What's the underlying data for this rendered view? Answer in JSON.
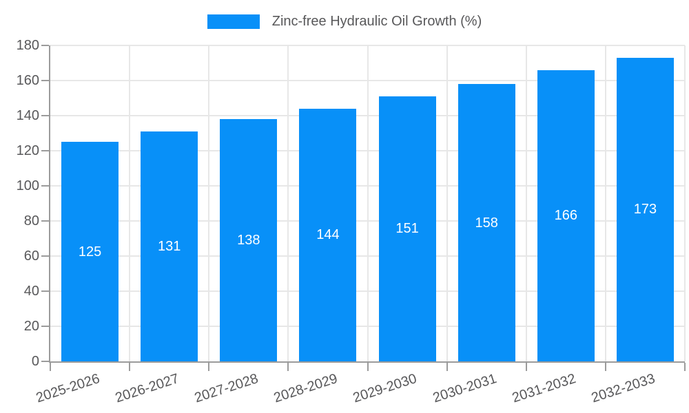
{
  "chart_data": {
    "type": "bar",
    "title": "",
    "legend": {
      "label": "Zinc-free Hydraulic Oil Growth (%)",
      "position": "top"
    },
    "categories": [
      "2025-2026",
      "2026-2027",
      "2027-2028",
      "2028-2029",
      "2029-2030",
      "2030-2031",
      "2031-2032",
      "2032-2033"
    ],
    "values": [
      125,
      131,
      138,
      144,
      151,
      158,
      166,
      173
    ],
    "xlabel": "",
    "ylabel": "",
    "ylim": [
      0,
      180
    ],
    "ytick_step": 20,
    "yticks": [
      0,
      20,
      40,
      60,
      80,
      100,
      120,
      140,
      160,
      180
    ],
    "grid": true,
    "xtick_rotation": -18,
    "value_labels_inside_bars": true,
    "colors": {
      "bar": "#0890F8",
      "axis": "#9b9b9b",
      "grid": "#e7e7e7",
      "text": "#58585a",
      "value_label": "#ffffff",
      "background": "#ffffff"
    }
  }
}
